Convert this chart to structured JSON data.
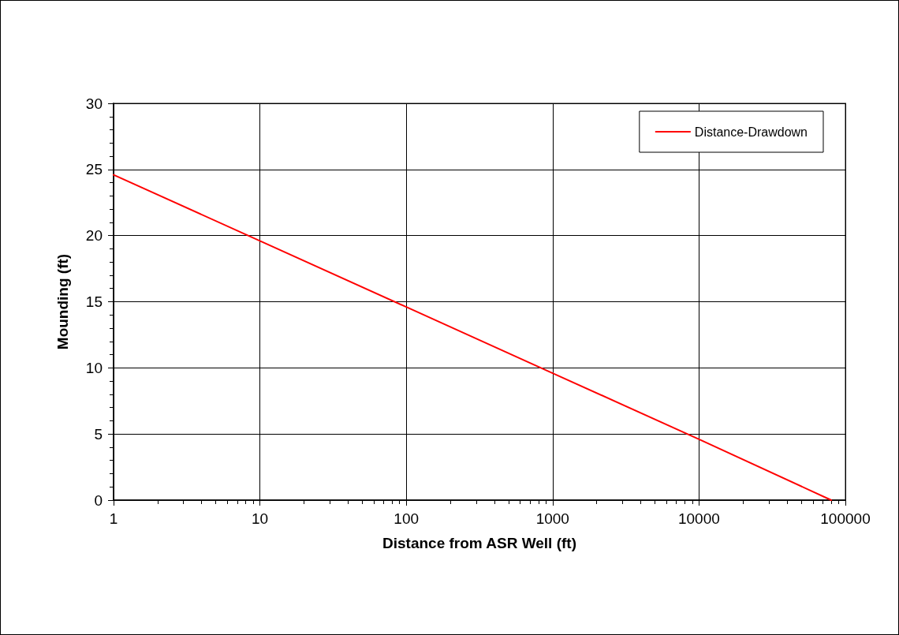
{
  "chart_data": {
    "type": "line",
    "xlabel": "Distance from ASR Well (ft)",
    "ylabel": "Mounding (ft)",
    "x": [
      1,
      10,
      100,
      1000,
      10000,
      80000
    ],
    "series": [
      {
        "name": "Distance-Drawdown",
        "color": "#ff0000",
        "values": [
          24.6,
          19.6,
          14.6,
          9.6,
          4.6,
          0
        ]
      }
    ],
    "xlim": [
      1,
      100000
    ],
    "xticks": [
      1,
      10,
      100,
      1000,
      10000,
      100000
    ],
    "ylim": [
      0,
      30
    ],
    "yticks": [
      0,
      5,
      10,
      15,
      20,
      25,
      30
    ],
    "log": "x",
    "grid": true,
    "legend": "top right",
    "marker": "none",
    "line_style": "solid"
  }
}
